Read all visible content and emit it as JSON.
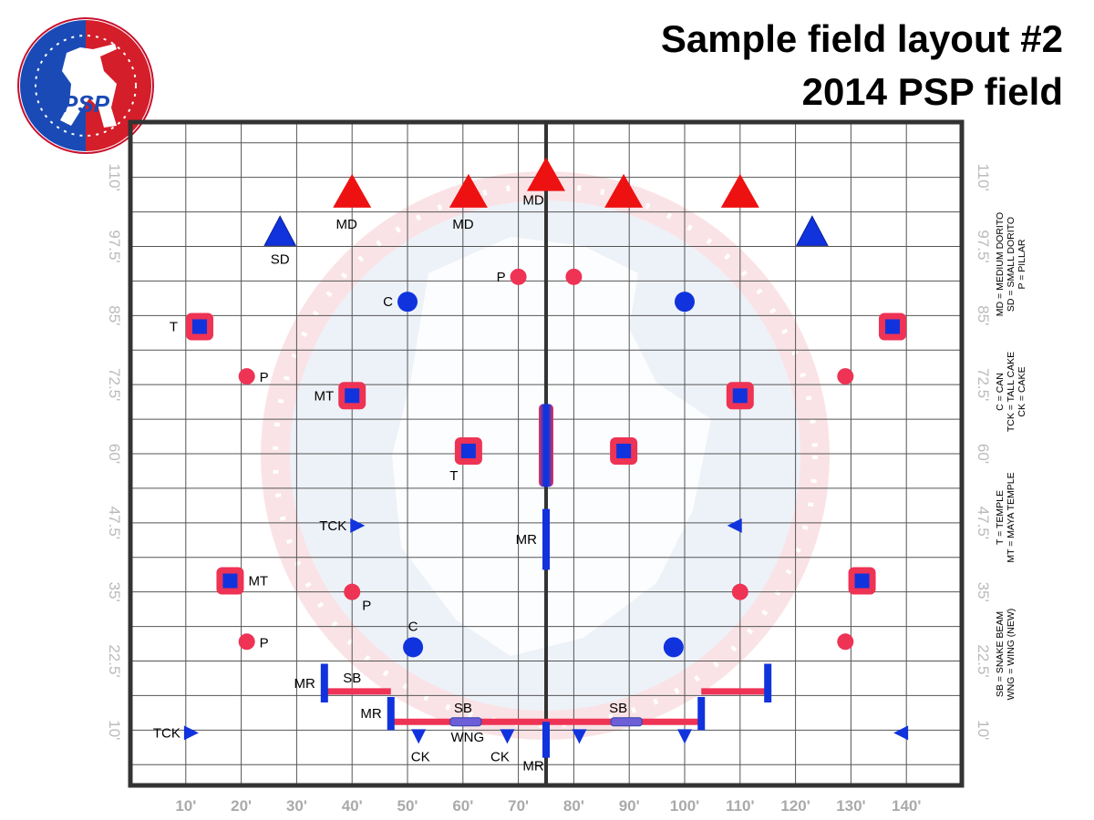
{
  "title": {
    "line1": "Sample field layout #2",
    "line2": "2014 PSP field"
  },
  "logo": {
    "text": "PSP"
  },
  "colors": {
    "red": "#ee1111",
    "blue": "#1133dd",
    "pink": "#ee3355",
    "grid": "#555555",
    "border": "#333333"
  },
  "axes": {
    "x_ticks": [
      {
        "value": 10,
        "label": "10'"
      },
      {
        "value": 20,
        "label": "20'"
      },
      {
        "value": 30,
        "label": "30'"
      },
      {
        "value": 40,
        "label": "40'"
      },
      {
        "value": 50,
        "label": "50'"
      },
      {
        "value": 60,
        "label": "60'"
      },
      {
        "value": 70,
        "label": "70'"
      },
      {
        "value": 80,
        "label": "80'"
      },
      {
        "value": 90,
        "label": "90'"
      },
      {
        "value": 100,
        "label": "100'"
      },
      {
        "value": 110,
        "label": "110'"
      },
      {
        "value": 120,
        "label": "120'"
      },
      {
        "value": 130,
        "label": "130'"
      },
      {
        "value": 140,
        "label": "140'"
      }
    ],
    "y_ticks": [
      {
        "value": 10,
        "label": "10'"
      },
      {
        "value": 22.5,
        "label": "22.5'"
      },
      {
        "value": 35,
        "label": "35'"
      },
      {
        "value": 47.5,
        "label": "47.5'"
      },
      {
        "value": 60,
        "label": "60'"
      },
      {
        "value": 72.5,
        "label": "72.5'"
      },
      {
        "value": 85,
        "label": "85'"
      },
      {
        "value": 97.5,
        "label": "97.5'"
      },
      {
        "value": 110,
        "label": "110'"
      }
    ],
    "x_range": [
      0,
      150
    ],
    "y_range": [
      0,
      120
    ],
    "center_x": 75
  },
  "legend": [
    {
      "lines": [
        "MD = MEDIUM DORITO",
        "SD = SMALL DORITO",
        "P = PILLAR"
      ]
    },
    {
      "lines": [
        "C = CAN",
        "TCK = TALL CAKE",
        "CK = CAKE"
      ]
    },
    {
      "lines": [
        "T = TEMPLE",
        "MT = MAYA TEMPLE"
      ]
    },
    {
      "lines": [
        "SB = SNAKE BEAM",
        "WNG = WING (NEW)"
      ]
    }
  ],
  "bunkers": [
    {
      "type": "MD",
      "x": 40,
      "y": 107,
      "label": "MD"
    },
    {
      "type": "MD",
      "x": 61,
      "y": 107,
      "label": "MD"
    },
    {
      "type": "MD",
      "x": 75,
      "y": 110,
      "label": "MD"
    },
    {
      "type": "MD",
      "x": 89,
      "y": 107,
      "label": ""
    },
    {
      "type": "MD",
      "x": 110,
      "y": 107,
      "label": ""
    },
    {
      "type": "SD",
      "x": 27,
      "y": 100,
      "label": "SD"
    },
    {
      "type": "SD",
      "x": 123,
      "y": 100,
      "label": ""
    },
    {
      "type": "P",
      "x": 70,
      "y": 92,
      "label": "P"
    },
    {
      "type": "P",
      "x": 80,
      "y": 92,
      "label": ""
    },
    {
      "type": "C",
      "x": 50,
      "y": 87.5,
      "label": "C"
    },
    {
      "type": "C",
      "x": 100,
      "y": 87.5,
      "label": ""
    },
    {
      "type": "T",
      "x": 12.5,
      "y": 83,
      "label": "T"
    },
    {
      "type": "T",
      "x": 137.5,
      "y": 83,
      "label": ""
    },
    {
      "type": "P",
      "x": 21,
      "y": 74,
      "label": "P"
    },
    {
      "type": "P",
      "x": 129,
      "y": 74,
      "label": ""
    },
    {
      "type": "MT",
      "x": 40,
      "y": 70.5,
      "label": "MT"
    },
    {
      "type": "MT",
      "x": 110,
      "y": 70.5,
      "label": ""
    },
    {
      "type": "T",
      "x": 61,
      "y": 60.5,
      "label": "T"
    },
    {
      "type": "T",
      "x": 89,
      "y": 60.5,
      "label": ""
    },
    {
      "type": "TCK",
      "x": 41,
      "y": 47,
      "label": "TCK",
      "dir": "right"
    },
    {
      "type": "TCK",
      "x": 109,
      "y": 47,
      "label": "",
      "dir": "left"
    },
    {
      "type": "MT",
      "x": 18,
      "y": 37,
      "label": "MT"
    },
    {
      "type": "MT",
      "x": 132,
      "y": 37,
      "label": ""
    },
    {
      "type": "P",
      "x": 40,
      "y": 35,
      "label": "P"
    },
    {
      "type": "P",
      "x": 110,
      "y": 35,
      "label": ""
    },
    {
      "type": "P",
      "x": 21,
      "y": 26,
      "label": "P"
    },
    {
      "type": "P",
      "x": 129,
      "y": 26,
      "label": ""
    },
    {
      "type": "C",
      "x": 51,
      "y": 25,
      "label": "C"
    },
    {
      "type": "C",
      "x": 98,
      "y": 25,
      "label": ""
    },
    {
      "type": "TCK",
      "x": 11,
      "y": 9.5,
      "label": "TCK",
      "dir": "right"
    },
    {
      "type": "TCK",
      "x": 139,
      "y": 9.5,
      "label": "",
      "dir": "left"
    },
    {
      "type": "CK",
      "x": 52,
      "y": 9,
      "label": "CK"
    },
    {
      "type": "CK",
      "x": 68,
      "y": 9,
      "label": "CK"
    },
    {
      "type": "CK",
      "x": 81,
      "y": 9,
      "label": ""
    },
    {
      "type": "CK",
      "x": 100,
      "y": 9,
      "label": ""
    }
  ],
  "beams": [
    {
      "type": "SB",
      "x1": 35,
      "x2": 47,
      "y": 17,
      "label": "SB"
    },
    {
      "type": "SB",
      "x1": 47,
      "x2": 75,
      "y": 11.5,
      "label": "SB"
    },
    {
      "type": "SB",
      "x1": 75,
      "x2": 103,
      "y": 11.5,
      "label": "SB"
    },
    {
      "type": "SB",
      "x1": 103,
      "x2": 115,
      "y": 17,
      "label": ""
    }
  ],
  "wings": [
    {
      "x": 60.5,
      "y": 11.5,
      "label": "WNG"
    },
    {
      "x": 89.5,
      "y": 11.5,
      "label": ""
    }
  ],
  "vertical_walls": [
    {
      "type": "MR",
      "x": 75,
      "y1": 54,
      "y2": 69,
      "label": "",
      "style": "big"
    },
    {
      "type": "MR",
      "x": 75,
      "y1": 39,
      "y2": 50,
      "label": "MR"
    },
    {
      "type": "MR",
      "x": 35,
      "y1": 15,
      "y2": 22,
      "label": "MR"
    },
    {
      "type": "MR",
      "x": 47,
      "y1": 10,
      "y2": 16,
      "label": "MR"
    },
    {
      "type": "MR",
      "x": 75,
      "y1": 5,
      "y2": 11.5,
      "label": "MR"
    },
    {
      "type": "MR",
      "x": 103,
      "y1": 10,
      "y2": 16,
      "label": ""
    },
    {
      "type": "MR",
      "x": 115,
      "y1": 15,
      "y2": 22,
      "label": ""
    }
  ]
}
